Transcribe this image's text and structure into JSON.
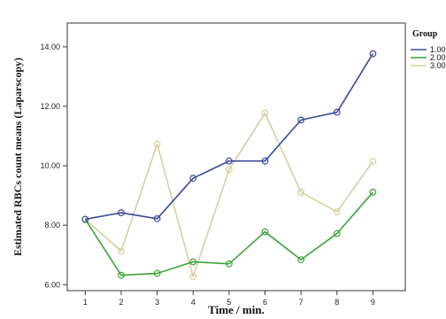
{
  "chart_data": {
    "type": "line",
    "xlabel": "Time / min.",
    "ylabel": "Estimated RBCs count means (Laparscopy)",
    "x": [
      1,
      2,
      3,
      4,
      5,
      6,
      7,
      8,
      9
    ],
    "x_ticks": [
      "1",
      "2",
      "3",
      "4",
      "5",
      "6",
      "7",
      "8",
      "9"
    ],
    "ylim": [
      5.8,
      14.8
    ],
    "y_ticks": [
      "6.00",
      "8.00",
      "10.00",
      "12.00",
      "14.00"
    ],
    "y_tick_values": [
      6,
      8,
      10,
      12,
      14
    ],
    "grid": false,
    "legend": {
      "title": "Group",
      "position": "right",
      "labels": [
        "1.00",
        "2.00",
        "3.00"
      ]
    },
    "series": [
      {
        "name": "1.00",
        "color": "#3b4a9c",
        "values": [
          8.2,
          8.42,
          8.22,
          9.58,
          10.16,
          10.16,
          11.54,
          11.8,
          13.77
        ]
      },
      {
        "name": "2.00",
        "color": "#3aa43a",
        "values": [
          8.2,
          6.32,
          6.38,
          6.77,
          6.7,
          7.78,
          6.84,
          7.72,
          9.11
        ]
      },
      {
        "name": "3.00",
        "color": "#d6cfa0",
        "values": [
          8.2,
          7.13,
          10.73,
          6.27,
          9.87,
          11.77,
          9.11,
          8.45,
          10.15
        ]
      }
    ]
  }
}
